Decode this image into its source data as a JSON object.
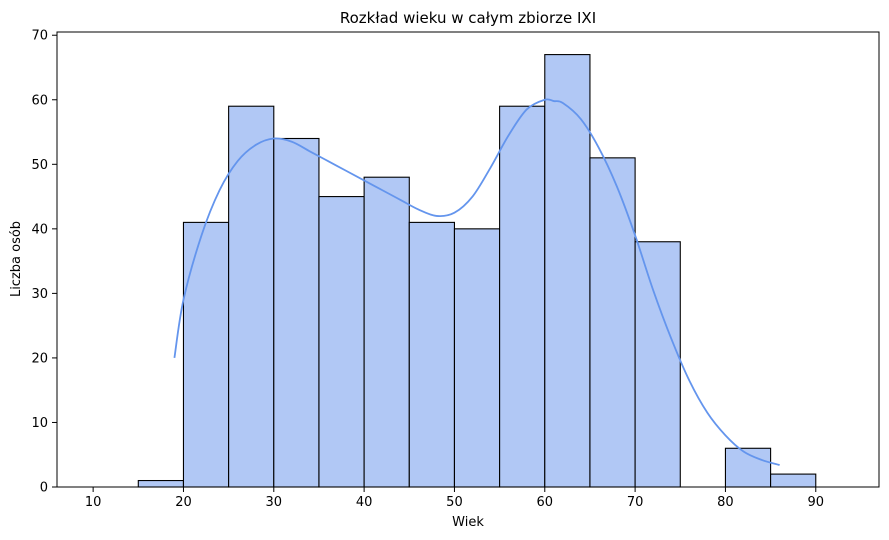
{
  "chart_data": {
    "type": "bar",
    "title": "Rozkład wieku w całym zbiorze IXI",
    "xlabel": "Wiek",
    "ylabel": "Liczba osób",
    "xlim": [
      6,
      97
    ],
    "ylim": [
      0,
      70.5
    ],
    "xticks": [
      10,
      20,
      30,
      40,
      50,
      60,
      70,
      80,
      90
    ],
    "yticks": [
      0,
      10,
      20,
      30,
      40,
      50,
      60,
      70
    ],
    "bin_width": 5,
    "bins": [
      {
        "start": 10,
        "count": 0
      },
      {
        "start": 15,
        "count": 1
      },
      {
        "start": 20,
        "count": 41
      },
      {
        "start": 25,
        "count": 59
      },
      {
        "start": 30,
        "count": 54
      },
      {
        "start": 35,
        "count": 45
      },
      {
        "start": 40,
        "count": 48
      },
      {
        "start": 45,
        "count": 41
      },
      {
        "start": 50,
        "count": 40
      },
      {
        "start": 55,
        "count": 59
      },
      {
        "start": 60,
        "count": 67
      },
      {
        "start": 65,
        "count": 51
      },
      {
        "start": 70,
        "count": 38
      },
      {
        "start": 75,
        "count": 0
      },
      {
        "start": 80,
        "count": 6
      },
      {
        "start": 85,
        "count": 2
      },
      {
        "start": 90,
        "count": 0
      }
    ],
    "kde": {
      "x": [
        19,
        20,
        22,
        24,
        26,
        28,
        30,
        32,
        34,
        36,
        38,
        40,
        42,
        44,
        46,
        48,
        50,
        52,
        54,
        56,
        58,
        60,
        61,
        62,
        64,
        66,
        68,
        70,
        72,
        74,
        76,
        78,
        80,
        82,
        84,
        86
      ],
      "y": [
        20,
        29,
        39,
        46,
        50.5,
        53,
        54,
        53.5,
        52,
        50.5,
        49,
        47.5,
        46,
        44.5,
        43,
        42,
        42.5,
        45,
        49.5,
        54.5,
        58.5,
        60,
        59.8,
        59.5,
        57,
        52.5,
        46.5,
        39,
        30.5,
        23,
        16.5,
        11.5,
        8,
        5.5,
        4.2,
        3.4
      ]
    },
    "colors": {
      "bar_fill": "#b1c8f5",
      "bar_edge": "#000000",
      "kde_line": "#6495ed"
    },
    "grid": false,
    "legend": "none"
  }
}
